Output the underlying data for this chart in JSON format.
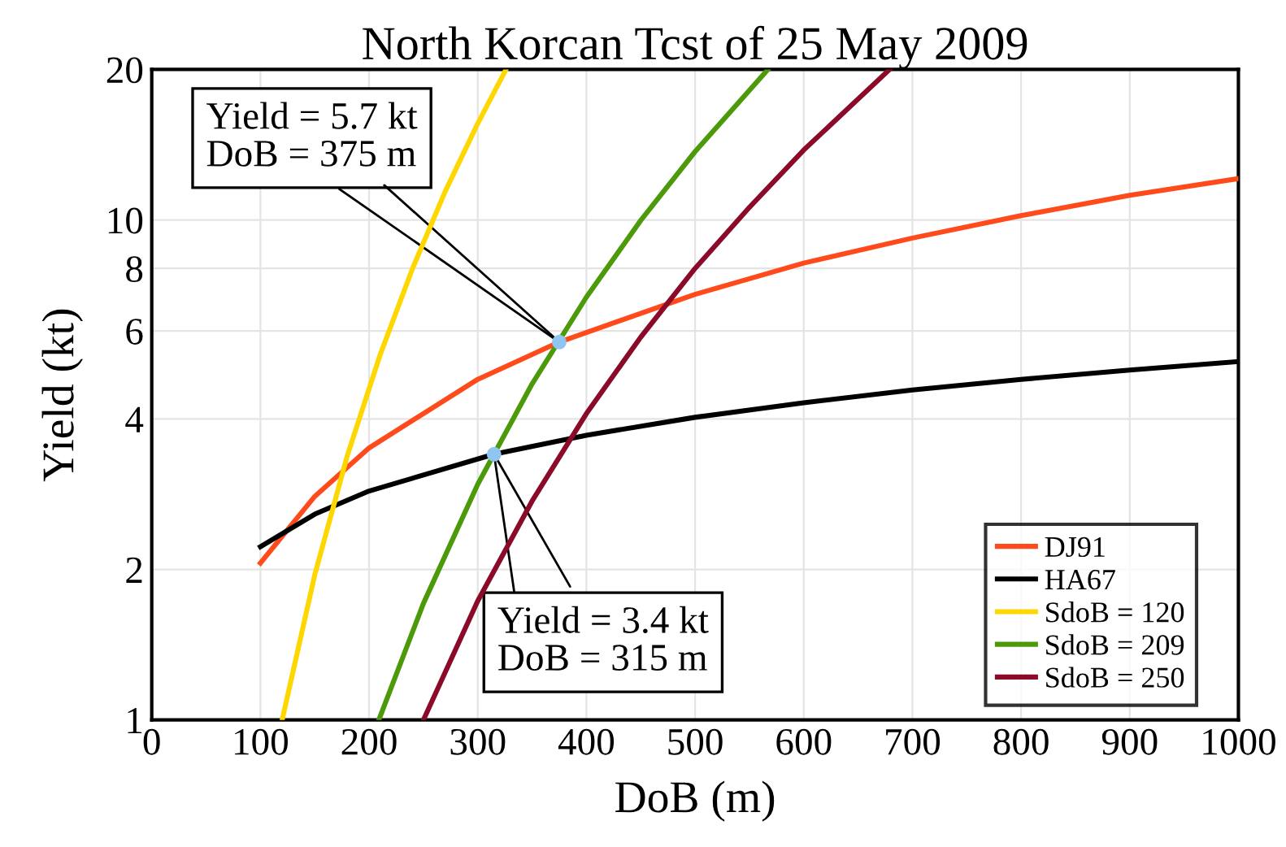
{
  "chart_data": {
    "type": "line",
    "title": "North Korcan Tcst of 25 May 2009",
    "xlabel": "DoB (m)",
    "ylabel": "Yield (kt)",
    "log": "y",
    "xlim": [
      0,
      1000
    ],
    "ylim": [
      1,
      20
    ],
    "xticks": [
      0,
      100,
      200,
      300,
      400,
      500,
      600,
      700,
      800,
      900,
      1000
    ],
    "yticks": [
      1,
      2,
      4,
      6,
      8,
      10,
      20
    ],
    "grid": true,
    "legend": "bottom right",
    "marker": "none",
    "line_style": "solid",
    "series": [
      {
        "name": "DJ91",
        "color": "#ff4a1c",
        "x": [
          100,
          150,
          200,
          300,
          375,
          500,
          600,
          700,
          800,
          900,
          1000
        ],
        "values": [
          2.06,
          2.8,
          3.5,
          4.8,
          5.7,
          7.1,
          8.2,
          9.2,
          10.2,
          11.2,
          12.1
        ]
      },
      {
        "name": "HA67",
        "color": "#000000",
        "x": [
          100,
          150,
          200,
          315,
          400,
          500,
          600,
          700,
          800,
          900,
          1000
        ],
        "values": [
          2.22,
          2.58,
          2.87,
          3.4,
          3.71,
          4.03,
          4.31,
          4.57,
          4.8,
          5.01,
          5.21
        ]
      },
      {
        "name": "SdoB = 120",
        "color": "#ffd700",
        "x": [
          120,
          150,
          180,
          210,
          240,
          270,
          300,
          326
        ],
        "values": [
          1,
          1.95,
          3.38,
          5.36,
          8.0,
          11.4,
          15.6,
          20
        ]
      },
      {
        "name": "SdoB = 209",
        "color": "#4c9a0a",
        "x": [
          209,
          250,
          300,
          350,
          400,
          450,
          500,
          567
        ],
        "values": [
          1,
          1.71,
          2.96,
          4.7,
          7.01,
          9.98,
          13.7,
          20
        ]
      },
      {
        "name": "SdoB = 250",
        "color": "#8b0a2a",
        "x": [
          250,
          300,
          350,
          400,
          450,
          500,
          550,
          600,
          679
        ],
        "values": [
          1,
          1.73,
          2.74,
          4.1,
          5.83,
          8.0,
          10.6,
          13.8,
          20
        ]
      },
      {
        "type": "scatter",
        "color": "#8ec6f0",
        "x": [
          375,
          315
        ],
        "values": [
          5.7,
          3.4
        ],
        "marker": "circle"
      }
    ],
    "annotations": [
      {
        "text": "Yield = 5.7 kt\nDoB = 375 m",
        "x": 375,
        "y": 5.7
      },
      {
        "text": "Yield = 3.4 kt\nDoB = 315 m",
        "x": 315,
        "y": 3.4
      }
    ]
  }
}
